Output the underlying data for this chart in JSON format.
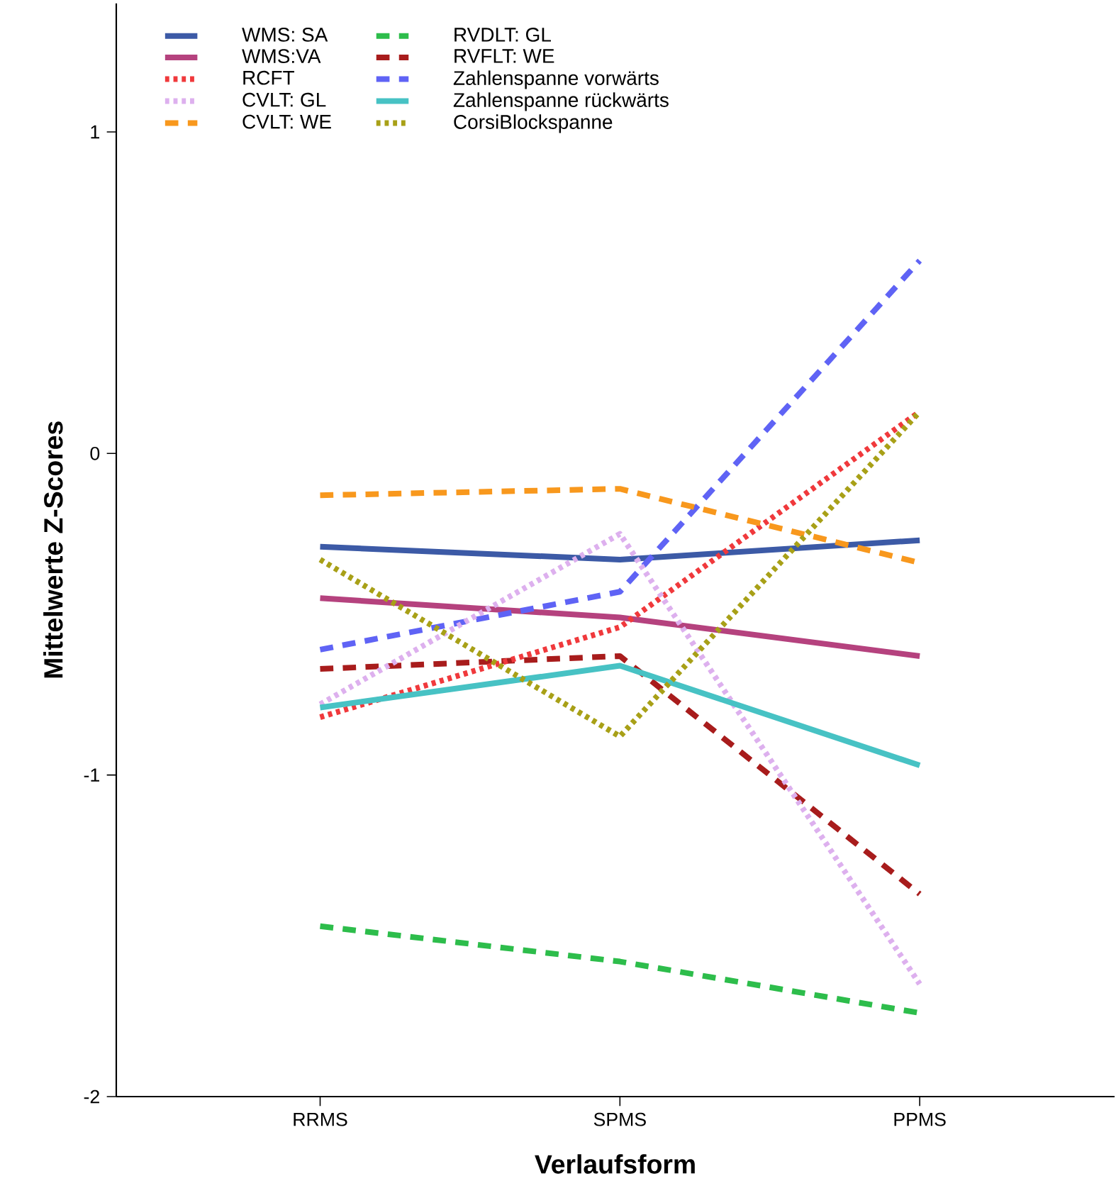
{
  "chart_data": {
    "type": "line",
    "xlabel": "Verlaufsform",
    "ylabel": "Mittelwerte Z-Scores",
    "categories": [
      "RRMS",
      "SPMS",
      "PPMS"
    ],
    "ylim": [
      -2,
      1.4
    ],
    "yticks": [
      -2,
      -1,
      0,
      1
    ],
    "grid": false,
    "legend": "top left",
    "marker": "none",
    "series": [
      {
        "name": "WMS: SA",
        "color": "#3c5aa6",
        "line_style": "solid",
        "values": [
          -0.29,
          -0.33,
          -0.27
        ]
      },
      {
        "name": "WMS:VA",
        "color": "#b5427e",
        "line_style": "solid",
        "values": [
          -0.45,
          -0.51,
          -0.63
        ]
      },
      {
        "name": "RCFT",
        "color": "#f0393c",
        "line_style": "dotted",
        "values": [
          -0.82,
          -0.54,
          0.13
        ]
      },
      {
        "name": "CVLT: GL",
        "color": "#ddb0ee",
        "line_style": "dotted",
        "values": [
          -0.78,
          -0.25,
          -1.65
        ]
      },
      {
        "name": "CVLT: WE",
        "color": "#f8981d",
        "line_style": "dashed",
        "values": [
          -0.13,
          -0.11,
          -0.34
        ]
      },
      {
        "name": "RVDLT: GL",
        "color": "#2dbd4b",
        "line_style": "dashed",
        "values": [
          -1.47,
          -1.58,
          -1.74
        ]
      },
      {
        "name": "RVFLT: WE",
        "color": "#a81c1c",
        "line_style": "dashed",
        "values": [
          -0.67,
          -0.63,
          -1.37
        ]
      },
      {
        "name": "Zahlenspanne vorwärts",
        "color": "#5f63f5",
        "line_style": "dashed",
        "values": [
          -0.61,
          -0.43,
          0.6
        ]
      },
      {
        "name": "Zahlenspanne rückwärts",
        "color": "#47c2c4",
        "line_style": "solid",
        "values": [
          -0.79,
          -0.66,
          -0.97
        ]
      },
      {
        "name": "CorsiBlockspanne",
        "color": "#a8a017",
        "line_style": "dotted",
        "values": [
          -0.33,
          -0.88,
          0.13
        ]
      }
    ]
  }
}
